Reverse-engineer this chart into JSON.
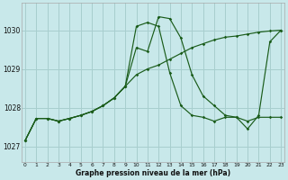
{
  "title": "Graphe pression niveau de la mer (hPa)",
  "background_color": "#c8e8ea",
  "grid_color": "#a8cece",
  "line_color": "#1a5c1a",
  "x_ticks": [
    0,
    1,
    2,
    3,
    4,
    5,
    6,
    7,
    8,
    9,
    10,
    11,
    12,
    13,
    14,
    15,
    16,
    17,
    18,
    19,
    20,
    21,
    22,
    23
  ],
  "y_ticks": [
    1027,
    1028,
    1029,
    1030
  ],
  "ylim": [
    1026.6,
    1030.7
  ],
  "xlim": [
    -0.3,
    23.3
  ],
  "series1_y": [
    1027.15,
    1027.72,
    1027.72,
    1027.65,
    1027.72,
    1027.8,
    1027.9,
    1028.05,
    1028.25,
    1028.55,
    1030.1,
    1030.2,
    1030.1,
    1028.9,
    1028.05,
    1027.8,
    1027.75,
    1027.65,
    1027.75,
    1027.75,
    1027.45,
    1027.8,
    1029.7,
    1030.0
  ],
  "series2_y": [
    1027.15,
    1027.72,
    1027.72,
    1027.65,
    1027.72,
    1027.8,
    1027.9,
    1028.05,
    1028.25,
    1028.55,
    1029.55,
    1029.45,
    1030.35,
    1030.3,
    1029.8,
    1028.85,
    1028.3,
    1028.05,
    1027.8,
    1027.75,
    1027.65,
    1027.75,
    1027.75,
    1027.75
  ],
  "series3_y": [
    1027.15,
    1027.72,
    1027.72,
    1027.65,
    1027.72,
    1027.8,
    1027.9,
    1028.05,
    1028.25,
    1028.55,
    1028.85,
    1029.0,
    1029.1,
    1029.25,
    1029.4,
    1029.55,
    1029.65,
    1029.75,
    1029.82,
    1029.85,
    1029.9,
    1029.95,
    1029.98,
    1030.0
  ]
}
